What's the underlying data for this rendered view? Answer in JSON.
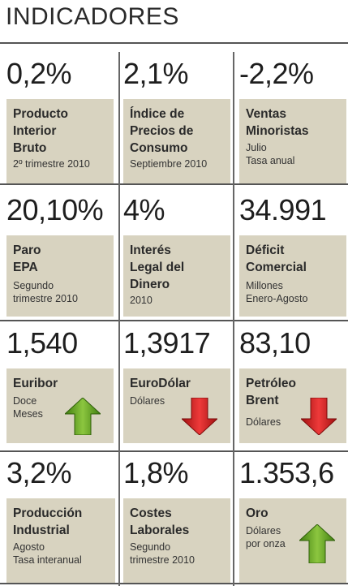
{
  "title": "INDICADORES",
  "colors": {
    "box": "#d8d3c0",
    "up_arrow": "#5a9e1c",
    "down_arrow": "#d81b1b"
  },
  "cells": {
    "pib": {
      "value": "0,2%",
      "label_lines": [
        "Producto",
        "Interior",
        "Bruto"
      ],
      "sub_lines": [
        "2º trimestre 2010"
      ]
    },
    "ipc": {
      "value": "2,1%",
      "label_lines": [
        "Índice de",
        "Precios de",
        "Consumo"
      ],
      "sub_lines": [
        "Septiembre 2010"
      ]
    },
    "ventas": {
      "value": "-2,2%",
      "label_lines": [
        "Ventas",
        "Minoristas"
      ],
      "sub_lines": [
        "Julio",
        "Tasa anual"
      ]
    },
    "paro": {
      "value": "20,10%",
      "label_lines": [
        "Paro",
        "EPA"
      ],
      "sub_lines": [
        "Segundo",
        "trimestre 2010"
      ]
    },
    "interes": {
      "value": "4%",
      "label_lines": [
        "Interés",
        "Legal del",
        "Dinero"
      ],
      "sub_lines": [
        "2010"
      ]
    },
    "deficit": {
      "value": "34.991",
      "label_lines": [
        "Déficit",
        "Comercial"
      ],
      "sub_lines": [
        "Millones",
        "Enero-Agosto"
      ]
    },
    "euribor": {
      "value": "1,540",
      "label_lines": [
        "Euribor"
      ],
      "sub_lines": [
        "Doce",
        "Meses"
      ],
      "trend": "up",
      "trend_icon": "green-up-arrow"
    },
    "eurodolar": {
      "value": "1,3917",
      "label_lines": [
        "EuroDólar"
      ],
      "sub_lines": [
        "Dólares"
      ],
      "trend": "down",
      "trend_icon": "red-down-arrow"
    },
    "petroleo": {
      "value": "83,10",
      "label_lines": [
        "Petróleo",
        "Brent"
      ],
      "sub_lines": [
        "Dólares"
      ],
      "trend": "down",
      "trend_icon": "red-down-arrow"
    },
    "produccion": {
      "value": "3,2%",
      "label_lines": [
        "Producción",
        "Industrial"
      ],
      "sub_lines": [
        "Agosto",
        "Tasa interanual"
      ]
    },
    "costes": {
      "value": "1,8%",
      "label_lines": [
        "Costes",
        "Laborales"
      ],
      "sub_lines": [
        "Segundo",
        "trimestre 2010"
      ]
    },
    "oro": {
      "value": "1.353,6",
      "label_lines": [
        "Oro"
      ],
      "sub_lines": [
        "Dólares",
        "por onza"
      ],
      "trend": "up",
      "trend_icon": "green-up-arrow"
    }
  }
}
